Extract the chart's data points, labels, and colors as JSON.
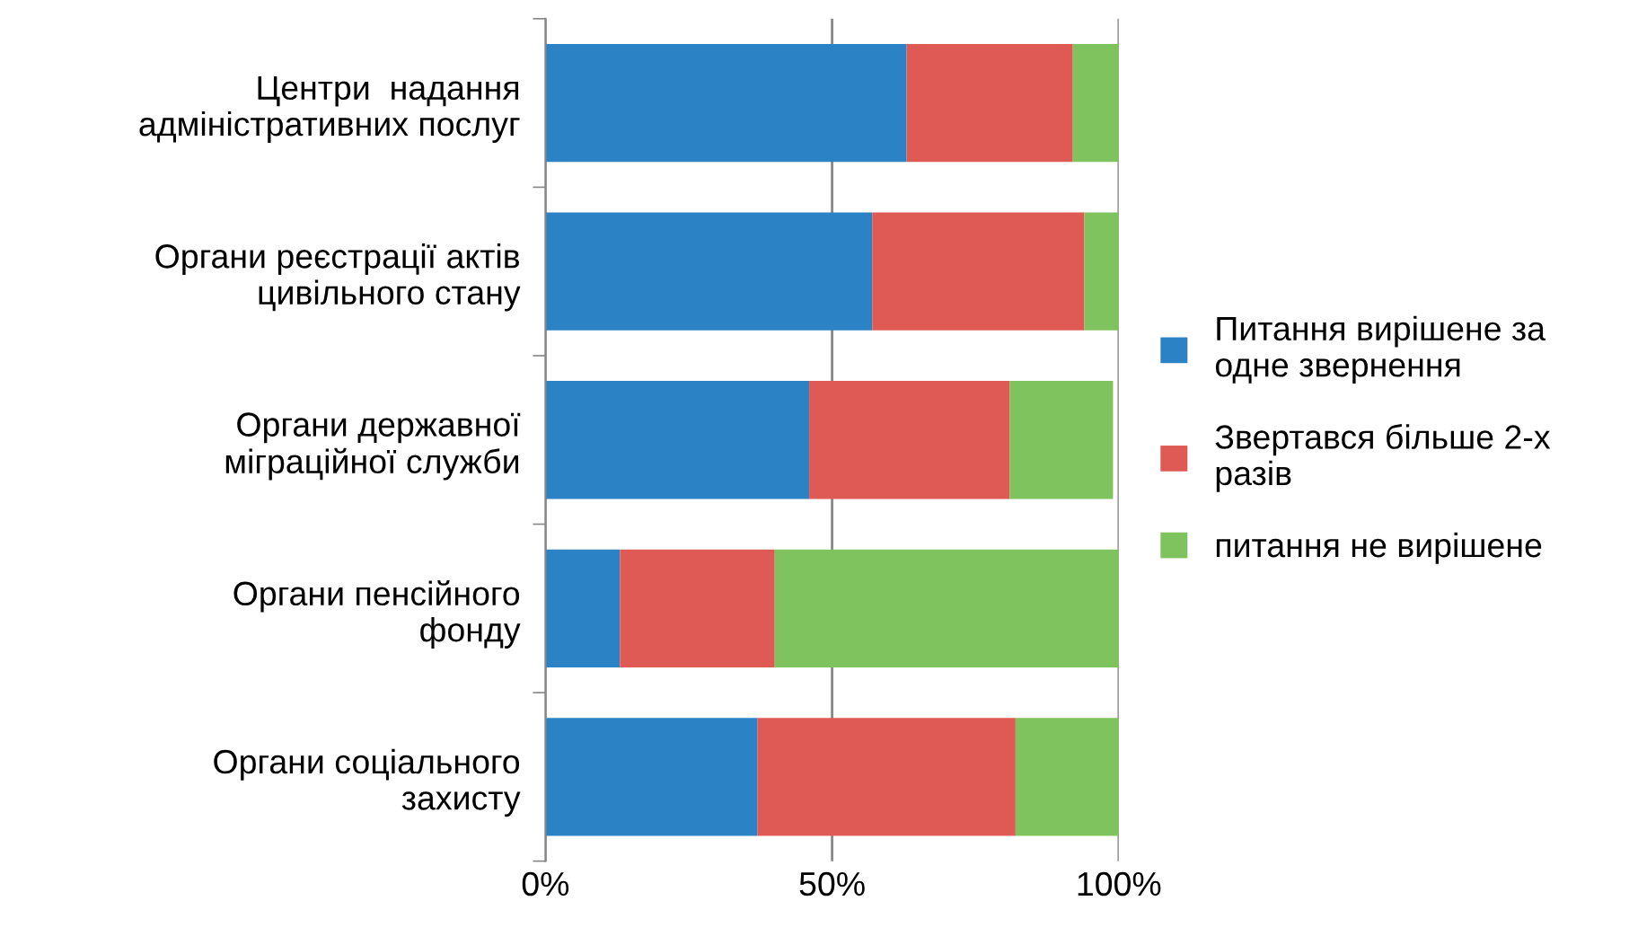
{
  "chart_data": {
    "type": "bar",
    "orientation": "horizontal",
    "stacked": true,
    "categories": [
      "Центри  надання\nадміністративних послуг",
      "Органи реєстрації актів\nцивільного стану",
      "Органи державної\nміграційної служби",
      "Органи пенсійного\nфонду",
      "Органи соціального\nзахисту"
    ],
    "series": [
      {
        "name": "Питання вирішене за\nодне звернення",
        "color": "#2b83c6",
        "values": [
          63,
          57,
          46,
          13,
          37
        ]
      },
      {
        "name": "Звертався більше 2-х\nразів",
        "color": "#e05a55",
        "values": [
          29,
          37,
          35,
          27,
          45
        ]
      },
      {
        "name": "питання не вирішене",
        "color": "#7fc35f",
        "values": [
          8,
          6,
          18,
          60,
          18
        ]
      }
    ],
    "xlim": [
      0,
      100
    ],
    "xticks": [
      {
        "value": 0,
        "label": "0%"
      },
      {
        "value": 50,
        "label": "50%"
      },
      {
        "value": 100,
        "label": "100%"
      }
    ],
    "grid": "x",
    "legend": "right"
  }
}
